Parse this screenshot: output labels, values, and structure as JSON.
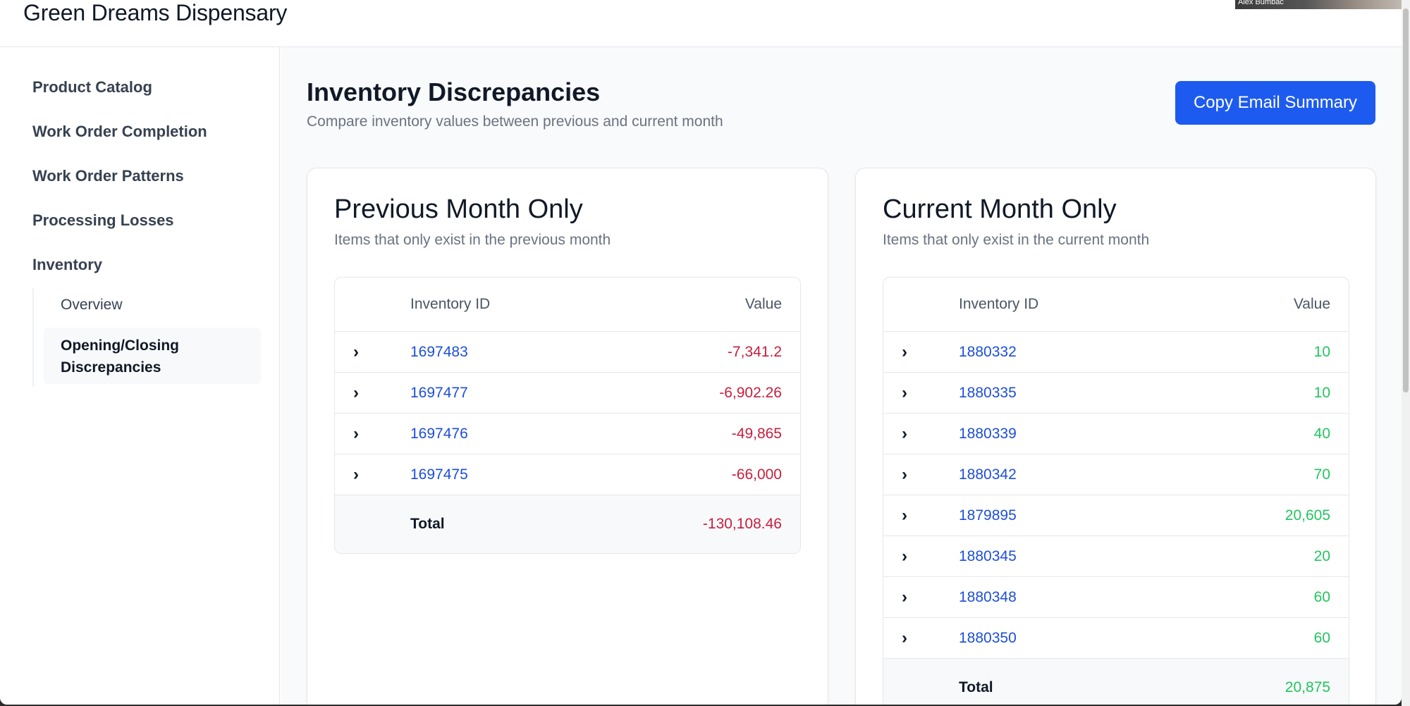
{
  "app": {
    "title": "Green Dreams Dispensary"
  },
  "video_overlay": {
    "name": "Alex Bumbac"
  },
  "sidebar": {
    "items": [
      {
        "label": "Product Catalog"
      },
      {
        "label": "Work Order Completion"
      },
      {
        "label": "Work Order Patterns"
      },
      {
        "label": "Processing Losses"
      },
      {
        "label": "Inventory"
      }
    ],
    "sub_items": [
      {
        "label": "Overview"
      },
      {
        "label": "Opening/Closing\nDiscrepancies"
      }
    ]
  },
  "page": {
    "title": "Inventory Discrepancies",
    "subtitle": "Compare inventory values between previous and current month",
    "copy_button": "Copy Email Summary"
  },
  "previous": {
    "title": "Previous Month Only",
    "subtitle": "Items that only exist in the previous month",
    "col_id": "Inventory ID",
    "col_value": "Value",
    "rows": [
      {
        "id": "1697483",
        "value": "-7,341.2"
      },
      {
        "id": "1697477",
        "value": "-6,902.26"
      },
      {
        "id": "1697476",
        "value": "-49,865"
      },
      {
        "id": "1697475",
        "value": "-66,000"
      }
    ],
    "total_label": "Total",
    "total_value": "-130,108.46"
  },
  "current": {
    "title": "Current Month Only",
    "subtitle": "Items that only exist in the current month",
    "col_id": "Inventory ID",
    "col_value": "Value",
    "rows": [
      {
        "id": "1880332",
        "value": "10"
      },
      {
        "id": "1880335",
        "value": "10"
      },
      {
        "id": "1880339",
        "value": "40"
      },
      {
        "id": "1880342",
        "value": "70"
      },
      {
        "id": "1879895",
        "value": "20,605"
      },
      {
        "id": "1880345",
        "value": "20"
      },
      {
        "id": "1880348",
        "value": "60"
      },
      {
        "id": "1880350",
        "value": "60"
      }
    ],
    "total_label": "Total",
    "total_value": "20,875"
  },
  "colors": {
    "accent": "#1d5bf0",
    "negative": "#c81e3c",
    "positive": "#22c55e",
    "link": "#1d4ed8"
  },
  "icons": {
    "row_expand": "chevron-right-icon"
  }
}
